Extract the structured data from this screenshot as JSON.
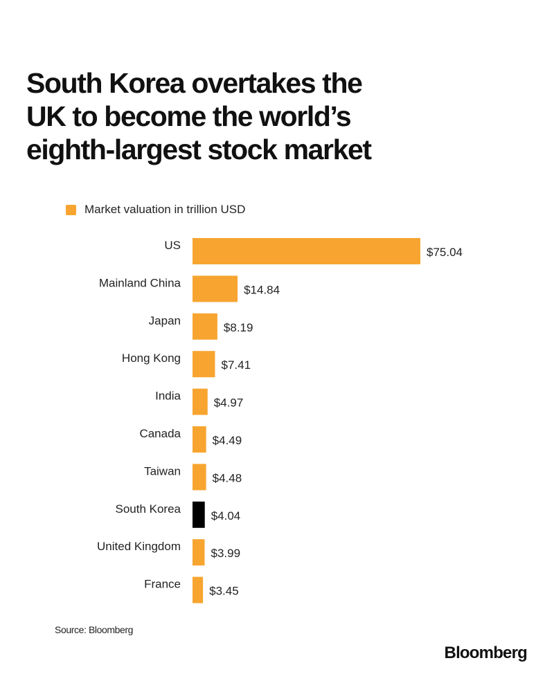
{
  "title_lines": [
    "South Korea overtakes the",
    "UK to become the world’s",
    "eighth-largest stock market"
  ],
  "source": "Source: Bloomberg",
  "brand": "Bloomberg",
  "colors": {
    "bar": "#F7A530",
    "highlight": "#000000",
    "text": "#111111"
  },
  "chart_data": {
    "type": "bar",
    "orientation": "horizontal",
    "title": "South Korea overtakes the UK to become the world’s eighth-largest stock market",
    "legend": "Market valuation in trillion USD",
    "categories": [
      "US",
      "Mainland China",
      "Japan",
      "Hong Kong",
      "India",
      "Canada",
      "Taiwan",
      "South Korea",
      "United Kingdom",
      "France"
    ],
    "values": [
      75.04,
      14.84,
      8.19,
      7.41,
      4.97,
      4.49,
      4.48,
      4.04,
      3.99,
      3.45
    ],
    "value_labels": [
      "$75.04",
      "$14.84",
      "$8.19",
      "$7.41",
      "$4.97",
      "$4.49",
      "$4.48",
      "$4.04",
      "$3.99",
      "$3.45"
    ],
    "highlight_category": "South Korea",
    "xlim": [
      0,
      75.04
    ],
    "xlabel": "",
    "ylabel": ""
  }
}
